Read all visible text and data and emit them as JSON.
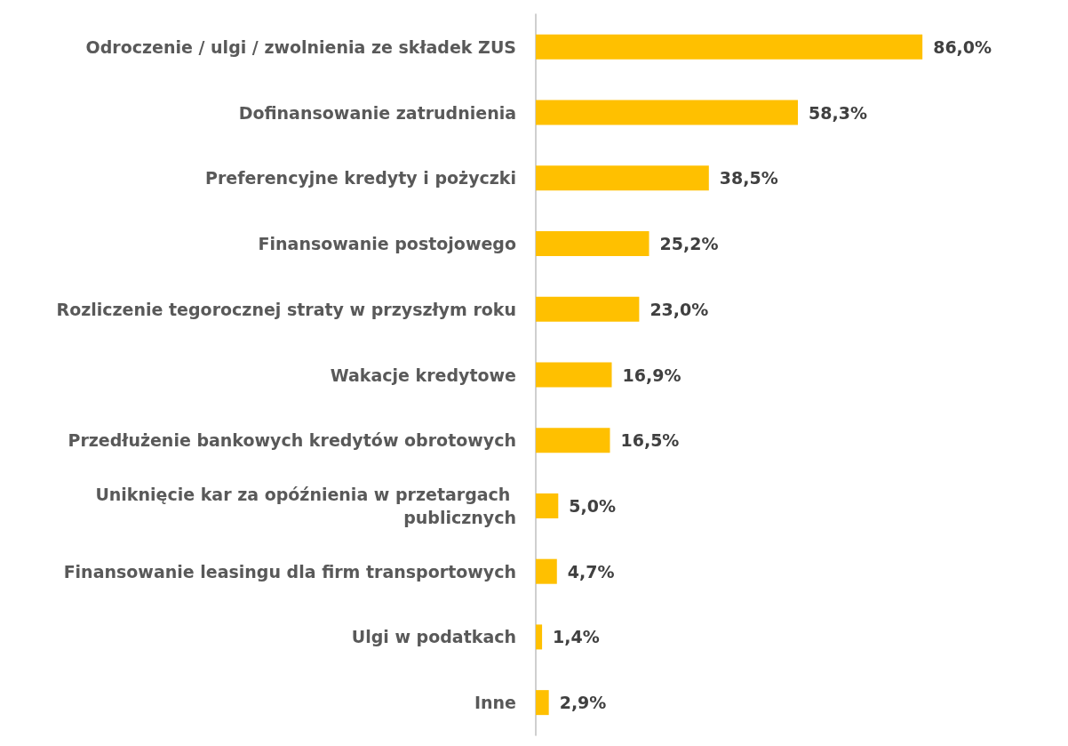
{
  "chart_data": {
    "type": "bar",
    "orientation": "horizontal",
    "categories": [
      "Odroczenie / ulgi / zwolnienia ze składek ZUS",
      "Dofinansowanie zatrudnienia",
      "Preferencyjne kredyty i pożyczki",
      "Finansowanie postojowego",
      "Rozliczenie tegorocznej straty w przyszłym roku",
      "Wakacje kredytowe",
      "Przedłużenie bankowych kredytów obrotowych",
      "Uniknięcie kar za opóźnienia w przetargach publicznych",
      "Finansowanie leasingu dla firm transportowych",
      "Ulgi w podatkach",
      "Inne"
    ],
    "values": [
      86.0,
      58.3,
      38.5,
      25.2,
      23.0,
      16.9,
      16.5,
      5.0,
      4.7,
      1.4,
      2.9
    ],
    "value_labels": [
      "86,0%",
      "58,3%",
      "38,5%",
      "25,2%",
      "23,0%",
      "16,9%",
      "16,5%",
      "5,0%",
      "4,7%",
      "1,4%",
      "2,9%"
    ],
    "color": "#ffc000"
  }
}
